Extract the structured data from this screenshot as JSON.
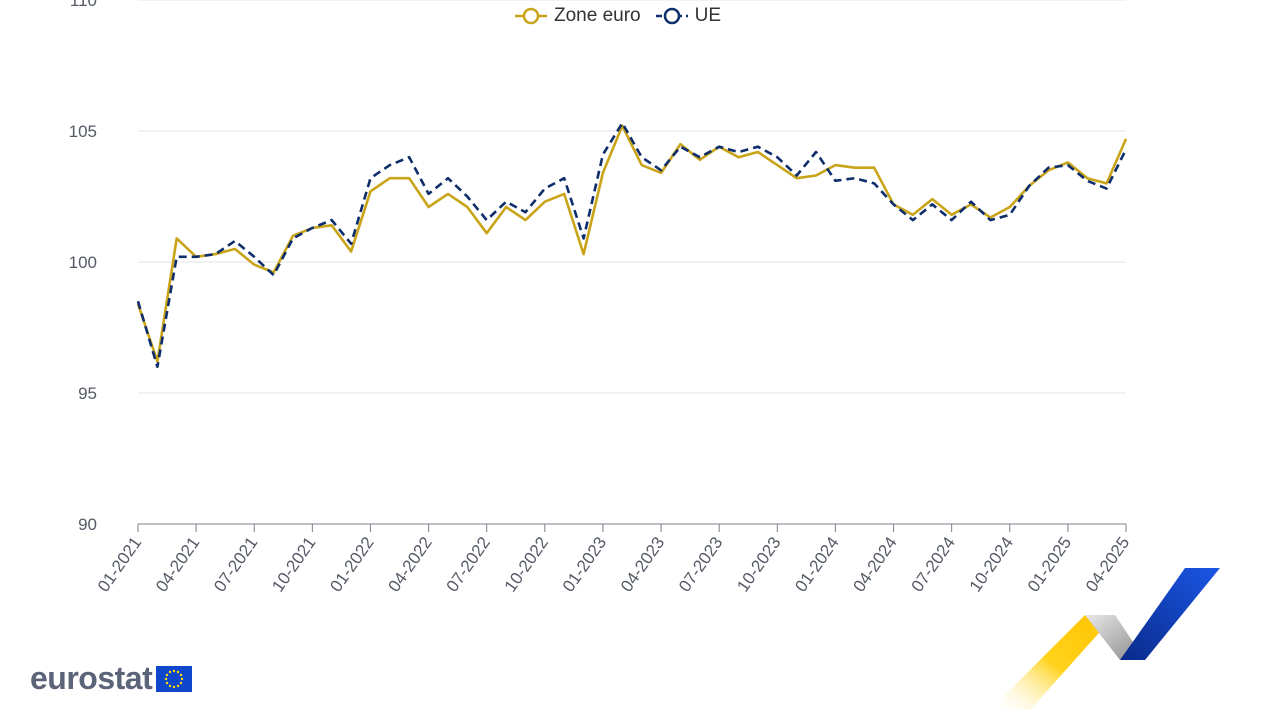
{
  "chart_data": {
    "type": "line",
    "title": "",
    "xlabel": "",
    "ylabel": "",
    "ylim": [
      90,
      110
    ],
    "yticks": [
      "90",
      "95",
      "100",
      "105",
      "110"
    ],
    "grid": true,
    "legend_position": "top-center",
    "x": [
      "01-2021",
      "02-2021",
      "03-2021",
      "04-2021",
      "05-2021",
      "06-2021",
      "07-2021",
      "08-2021",
      "09-2021",
      "10-2021",
      "11-2021",
      "12-2021",
      "01-2022",
      "02-2022",
      "03-2022",
      "04-2022",
      "05-2022",
      "06-2022",
      "07-2022",
      "08-2022",
      "09-2022",
      "10-2022",
      "11-2022",
      "12-2022",
      "01-2023",
      "02-2023",
      "03-2023",
      "04-2023",
      "05-2023",
      "06-2023",
      "07-2023",
      "08-2023",
      "09-2023",
      "10-2023",
      "11-2023",
      "12-2023",
      "01-2024",
      "02-2024",
      "03-2024",
      "04-2024",
      "05-2024",
      "06-2024",
      "07-2024",
      "08-2024",
      "09-2024",
      "10-2024",
      "11-2024",
      "12-2024",
      "01-2025",
      "02-2025",
      "03-2025",
      "04-2025"
    ],
    "xtick_labels": [
      "01-2021",
      "04-2021",
      "07-2021",
      "10-2021",
      "01-2022",
      "04-2022",
      "07-2022",
      "10-2022",
      "01-2023",
      "04-2023",
      "07-2023",
      "10-2023",
      "01-2024",
      "04-2024",
      "07-2024",
      "10-2024",
      "01-2025",
      "04-2025"
    ],
    "series": [
      {
        "name": "Zone euro",
        "color": "#c9a418",
        "dash": false,
        "values": [
          98.4,
          96.2,
          100.9,
          100.2,
          100.3,
          100.5,
          99.9,
          99.6,
          101.0,
          101.3,
          101.4,
          100.4,
          102.7,
          103.2,
          103.2,
          102.1,
          102.6,
          102.1,
          101.1,
          102.1,
          101.6,
          102.3,
          102.6,
          100.3,
          103.4,
          105.2,
          103.7,
          103.4,
          104.5,
          103.9,
          104.4,
          104.0,
          104.2,
          103.7,
          103.2,
          103.3,
          103.7,
          103.6,
          103.6,
          102.2,
          101.8,
          102.4,
          101.8,
          102.2,
          101.7,
          102.1,
          102.9,
          103.5,
          103.8,
          103.2,
          103.0,
          104.7
        ]
      },
      {
        "name": "UE",
        "color": "#0e2d6b",
        "dash": true,
        "values": [
          98.5,
          96.0,
          100.2,
          100.2,
          100.3,
          100.8,
          100.2,
          99.5,
          100.9,
          101.3,
          101.6,
          100.7,
          103.2,
          103.7,
          104.0,
          102.6,
          103.2,
          102.5,
          101.6,
          102.3,
          101.9,
          102.8,
          103.2,
          100.9,
          104.1,
          105.3,
          104.0,
          103.5,
          104.4,
          104.0,
          104.4,
          104.2,
          104.4,
          104.0,
          103.3,
          104.2,
          103.1,
          103.2,
          103.0,
          102.2,
          101.6,
          102.2,
          101.6,
          102.3,
          101.6,
          101.8,
          102.9,
          103.6,
          103.7,
          103.1,
          102.8,
          104.3
        ]
      }
    ]
  },
  "logo": {
    "text": "eurostat",
    "flag_icon": "eu-flag-icon"
  }
}
